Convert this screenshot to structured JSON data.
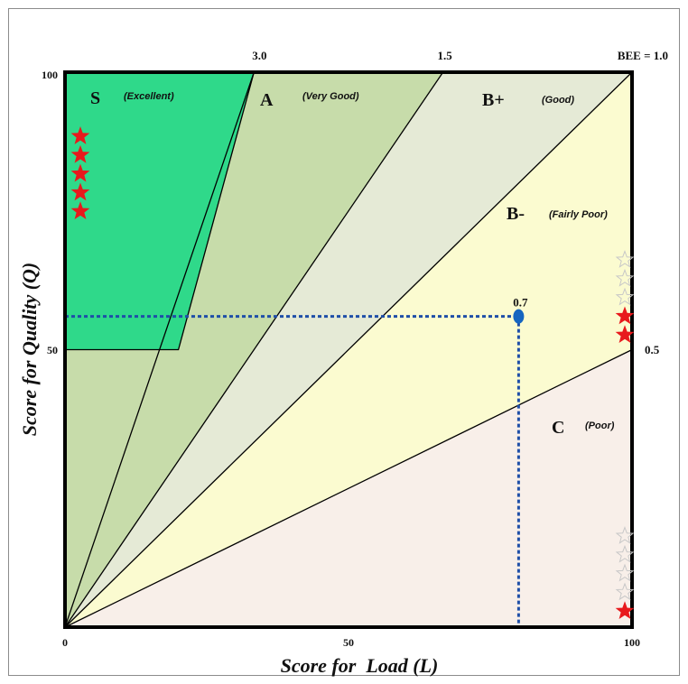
{
  "chart_data": {
    "type": "area",
    "xlabel": "Score for  Load (L)",
    "ylabel": "Score for Quality (Q)",
    "xlim": [
      0,
      100
    ],
    "ylim": [
      0,
      100
    ],
    "x_ticks": [
      "0",
      "50",
      "100"
    ],
    "y_ticks": [
      "100",
      "50"
    ],
    "bee_lines": [
      {
        "label": "3.0",
        "value": 3.0
      },
      {
        "label": "1.5",
        "value": 1.5
      },
      {
        "label": "BEE = 1.0",
        "value": 1.0
      },
      {
        "label": "0.5",
        "value": 0.5
      }
    ],
    "regions": [
      {
        "rank": "S",
        "desc": "(Excellent)",
        "color": "#2fd98a"
      },
      {
        "rank": "A",
        "desc": "(Very Good)",
        "color": "#c7dcaa"
      },
      {
        "rank": "B+",
        "desc": "(Good)",
        "color": "#e5ead6"
      },
      {
        "rank": "B-",
        "desc": "(Fairly Poor)",
        "color": "#fbfbd0"
      },
      {
        "rank": "C",
        "desc": "(Poor)",
        "color": "#f8efe9"
      }
    ],
    "s_region": {
      "q_min": 50,
      "l_min_at_q50": 20,
      "bee_min": 3.0
    },
    "point": {
      "label": "0.7",
      "x": 80,
      "y": 56,
      "color": "#1565c0"
    },
    "star_ratings": [
      {
        "position": "left",
        "filled": 5,
        "total": 5
      },
      {
        "position": "right-upper",
        "filled": 2,
        "total": 5
      },
      {
        "position": "right-lower",
        "filled": 1,
        "total": 5
      }
    ],
    "colors": {
      "star_filled": "#e8191c",
      "star_empty": "#c8c8c8",
      "guide_line": "#1f4fa8"
    }
  }
}
